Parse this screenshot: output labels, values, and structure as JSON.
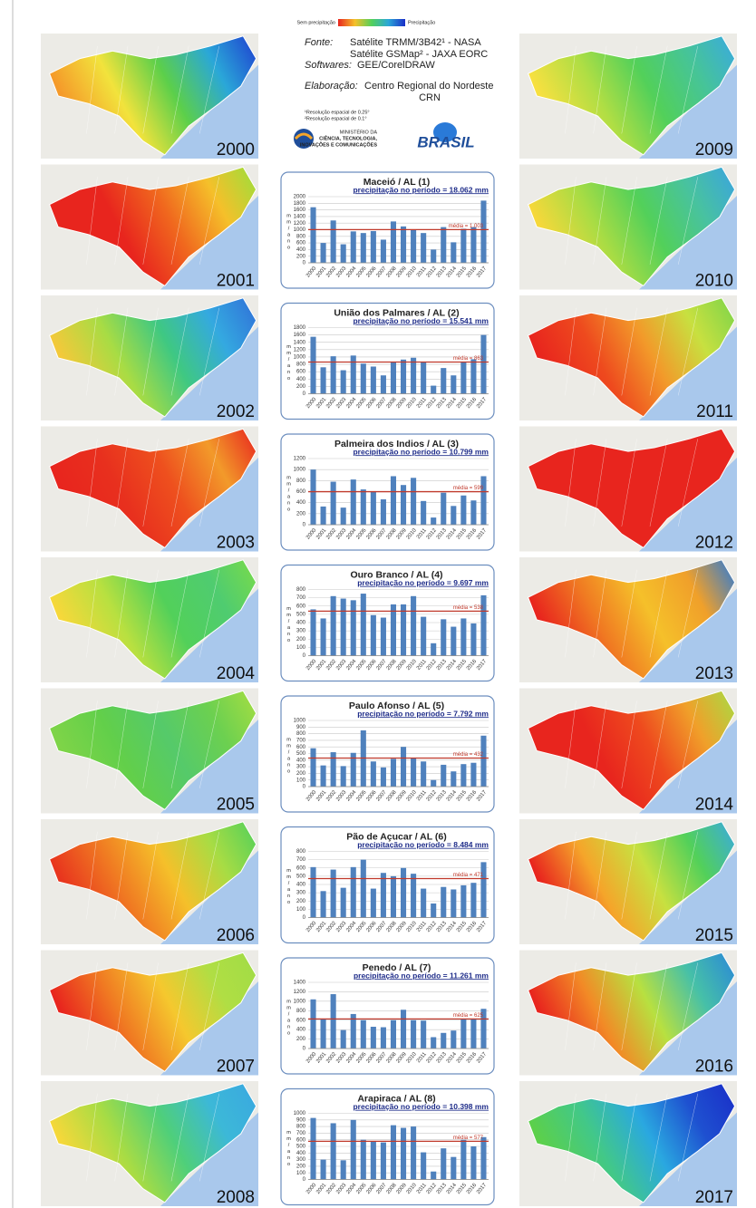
{
  "header": {
    "legend_low": "Sem precipitação",
    "legend_high": "Precipitação",
    "source_label": "Fonte:",
    "sources": [
      "Satélite TRMM/3B42¹ - NASA",
      "Satélite GSMap² - JAXA EORC"
    ],
    "software_label": "Softwares:",
    "software": "GEE/CorelDRAW",
    "credit_label": "Elaboração:",
    "credit": "Centro Regional do Nordeste",
    "credit_line2": "CRN",
    "notes": [
      "¹Resolução espacial de 0.25°",
      "²Resolução espacial de 0.1°"
    ],
    "ministry": [
      "MINISTÉRIO DA",
      "CIÊNCIA, TECNOLOGIA,",
      "INOVAÇÕES E COMUNICAÇÕES"
    ],
    "logo": "BRASIL"
  },
  "maps": [
    {
      "year": "2000",
      "colors": [
        "#f59a2a",
        "#f2e33c",
        "#5ccf4a",
        "#2aa7d8",
        "#1e3fd0"
      ]
    },
    {
      "year": "2001",
      "colors": [
        "#e8251e",
        "#e8251e",
        "#f0681e",
        "#f5c02a",
        "#9adf3c"
      ]
    },
    {
      "year": "2002",
      "colors": [
        "#f3c93a",
        "#a8dc44",
        "#3fc882",
        "#34a9e0",
        "#3070d8"
      ]
    },
    {
      "year": "2003",
      "colors": [
        "#e8251e",
        "#e8301e",
        "#ee501e",
        "#f29a2a",
        "#e8251e"
      ]
    },
    {
      "year": "2004",
      "colors": [
        "#f6d83a",
        "#b8e040",
        "#52d05a",
        "#4fcc70",
        "#7adb4a"
      ]
    },
    {
      "year": "2005",
      "colors": [
        "#7ed448",
        "#62cf4a",
        "#55ca6a",
        "#6cd050",
        "#a6de42"
      ]
    },
    {
      "year": "2006",
      "colors": [
        "#e8351e",
        "#f07a22",
        "#f5c02a",
        "#a8dc44",
        "#52d05a"
      ]
    },
    {
      "year": "2007",
      "colors": [
        "#e8251e",
        "#f07a22",
        "#f5c82e",
        "#b0de44",
        "#a0dc46"
      ]
    },
    {
      "year": "2008",
      "colors": [
        "#f5d83a",
        "#a8dc44",
        "#4fcf7a",
        "#3cb8d8",
        "#3aa8e0"
      ]
    },
    {
      "year": "2009",
      "colors": [
        "#f7e040",
        "#b0de44",
        "#52d05a",
        "#46c498",
        "#3aaae0"
      ]
    },
    {
      "year": "2010",
      "colors": [
        "#f6d83a",
        "#a8dc44",
        "#52d05a",
        "#48c2a0",
        "#3aa4e0"
      ]
    },
    {
      "year": "2011",
      "colors": [
        "#e8251e",
        "#ee4a1e",
        "#f29a2a",
        "#c8e040",
        "#7cd44a"
      ]
    },
    {
      "year": "2012",
      "colors": [
        "#e8251e",
        "#e8251e",
        "#e8251e",
        "#e8251e",
        "#e8251e"
      ]
    },
    {
      "year": "2013",
      "colors": [
        "#e8251e",
        "#f07a22",
        "#f5c02a",
        "#f0a02a",
        "#2a7ad8"
      ]
    },
    {
      "year": "2014",
      "colors": [
        "#e8251e",
        "#e8251e",
        "#ee4a1e",
        "#f0a02a",
        "#a8dc44"
      ]
    },
    {
      "year": "2015",
      "colors": [
        "#e8251e",
        "#f5a52a",
        "#c8e040",
        "#52d05a",
        "#3aaae0"
      ]
    },
    {
      "year": "2016",
      "colors": [
        "#e8251e",
        "#f28a26",
        "#b8e040",
        "#46c0a8",
        "#2a88d8"
      ]
    },
    {
      "year": "2017",
      "colors": [
        "#5cd04a",
        "#42c888",
        "#2aa8e0",
        "#1e50d0",
        "#1a2ec8"
      ]
    }
  ],
  "chart_data": [
    {
      "type": "bar",
      "title": "Maceió / AL (1)",
      "subtitle": "precipitação no período = 18.062 mm",
      "y_label": "mm/ano",
      "categories": [
        "2000",
        "2001",
        "2002",
        "2003",
        "2004",
        "2005",
        "2006",
        "2007",
        "2008",
        "2009",
        "2010",
        "2011",
        "2012",
        "2013",
        "2014",
        "2015",
        "2016",
        "2017"
      ],
      "values": [
        1680,
        600,
        1280,
        560,
        950,
        900,
        960,
        700,
        1250,
        1100,
        1000,
        900,
        400,
        1080,
        620,
        1030,
        1080,
        1880
      ],
      "color": "#4f81bd",
      "mean": 1003,
      "mean_label": "média = 1.003",
      "mean_color": "#c0392b",
      "ylim": [
        0,
        2000
      ],
      "yticks": [
        0,
        200,
        400,
        600,
        800,
        1000,
        1200,
        1400,
        1600,
        1800,
        2000
      ],
      "grid": true
    },
    {
      "type": "bar",
      "title": "União dos Palmares / AL (2)",
      "subtitle": "precipitação no período = 15.541 mm",
      "y_label": "mm/ano",
      "categories": [
        "2000",
        "2001",
        "2002",
        "2003",
        "2004",
        "2005",
        "2006",
        "2007",
        "2008",
        "2009",
        "2010",
        "2011",
        "2012",
        "2013",
        "2014",
        "2015",
        "2016",
        "2017"
      ],
      "values": [
        1550,
        720,
        1020,
        640,
        1040,
        820,
        740,
        500,
        860,
        930,
        980,
        860,
        220,
        700,
        500,
        860,
        940,
        1600
      ],
      "color": "#4f81bd",
      "mean": 863,
      "mean_label": "média = 863",
      "mean_color": "#c0392b",
      "ylim": [
        0,
        1800
      ],
      "yticks": [
        0,
        200,
        400,
        600,
        800,
        1000,
        1200,
        1400,
        1600,
        1800
      ],
      "grid": true
    },
    {
      "type": "bar",
      "title": "Palmeira dos Indios / AL (3)",
      "subtitle": "precipitação no período = 10.799 mm",
      "y_label": "mm/ano",
      "categories": [
        "2000",
        "2001",
        "2002",
        "2003",
        "2004",
        "2005",
        "2006",
        "2007",
        "2008",
        "2009",
        "2010",
        "2011",
        "2012",
        "2013",
        "2014",
        "2015",
        "2016",
        "2017"
      ],
      "values": [
        1000,
        330,
        780,
        310,
        820,
        640,
        600,
        460,
        880,
        720,
        850,
        430,
        130,
        580,
        340,
        530,
        440,
        880
      ],
      "color": "#4f81bd",
      "mean": 599,
      "mean_label": "média = 599",
      "mean_color": "#c0392b",
      "ylim": [
        0,
        1200
      ],
      "yticks": [
        0,
        200,
        400,
        600,
        800,
        1000,
        1200
      ],
      "grid": true
    },
    {
      "type": "bar",
      "title": "Ouro Branco / AL (4)",
      "subtitle": "precipitação no período = 9.697 mm",
      "y_label": "mm/ano",
      "categories": [
        "2000",
        "2001",
        "2002",
        "2003",
        "2004",
        "2005",
        "2006",
        "2007",
        "2008",
        "2009",
        "2010",
        "2011",
        "2012",
        "2013",
        "2014",
        "2015",
        "2016",
        "2017"
      ],
      "values": [
        560,
        450,
        720,
        690,
        670,
        750,
        490,
        460,
        620,
        620,
        720,
        470,
        150,
        440,
        350,
        450,
        390,
        730
      ],
      "color": "#4f81bd",
      "mean": 538,
      "mean_label": "média = 538",
      "mean_color": "#c0392b",
      "ylim": [
        0,
        800
      ],
      "yticks": [
        0,
        100,
        200,
        300,
        400,
        500,
        600,
        700,
        800
      ],
      "grid": true
    },
    {
      "type": "bar",
      "title": "Paulo Afonso / AL (5)",
      "subtitle": "precipitação no período = 7.792 mm",
      "y_label": "mm/ano",
      "categories": [
        "2000",
        "2001",
        "2002",
        "2003",
        "2004",
        "2005",
        "2006",
        "2007",
        "2008",
        "2009",
        "2010",
        "2011",
        "2012",
        "2013",
        "2014",
        "2015",
        "2016",
        "2017"
      ],
      "values": [
        580,
        320,
        520,
        310,
        510,
        850,
        380,
        290,
        420,
        600,
        430,
        380,
        100,
        330,
        230,
        340,
        360,
        770
      ],
      "color": "#4f81bd",
      "mean": 432,
      "mean_label": "média = 432",
      "mean_color": "#c0392b",
      "ylim": [
        0,
        1000
      ],
      "yticks": [
        0,
        100,
        200,
        300,
        400,
        500,
        600,
        700,
        800,
        900,
        1000
      ],
      "grid": true
    },
    {
      "type": "bar",
      "title": "Pão de Açucar / AL (6)",
      "subtitle": "precipitação no período = 8.484 mm",
      "y_label": "mm/ano",
      "categories": [
        "2000",
        "2001",
        "2002",
        "2003",
        "2004",
        "2005",
        "2006",
        "2007",
        "2008",
        "2009",
        "2010",
        "2011",
        "2012",
        "2013",
        "2014",
        "2015",
        "2016",
        "2017"
      ],
      "values": [
        610,
        320,
        580,
        360,
        610,
        700,
        350,
        540,
        500,
        600,
        530,
        350,
        170,
        370,
        340,
        390,
        420,
        670
      ],
      "color": "#4f81bd",
      "mean": 471,
      "mean_label": "média = 471",
      "mean_color": "#c0392b",
      "ylim": [
        0,
        800
      ],
      "yticks": [
        0,
        100,
        200,
        300,
        400,
        500,
        600,
        700,
        800
      ],
      "grid": true
    },
    {
      "type": "bar",
      "title": "Penedo / AL (7)",
      "subtitle": "precipitação no período = 11.261 mm",
      "y_label": "mm/ano",
      "categories": [
        "2000",
        "2001",
        "2002",
        "2003",
        "2004",
        "2005",
        "2006",
        "2007",
        "2008",
        "2009",
        "2010",
        "2011",
        "2012",
        "2013",
        "2014",
        "2015",
        "2016",
        "2017"
      ],
      "values": [
        1040,
        620,
        1150,
        390,
        730,
        600,
        460,
        450,
        600,
        820,
        600,
        590,
        240,
        330,
        380,
        620,
        620,
        840
      ],
      "color": "#4f81bd",
      "mean": 625,
      "mean_label": "média = 625",
      "mean_color": "#c0392b",
      "ylim": [
        0,
        1400
      ],
      "yticks": [
        0,
        200,
        400,
        600,
        800,
        1000,
        1200,
        1400
      ],
      "grid": true
    },
    {
      "type": "bar",
      "title": "Arapiraca / AL (8)",
      "subtitle": "precipitação no período = 10.398 mm",
      "y_label": "mm/ano",
      "categories": [
        "2000",
        "2001",
        "2002",
        "2003",
        "2004",
        "2005",
        "2006",
        "2007",
        "2008",
        "2009",
        "2010",
        "2011",
        "2012",
        "2013",
        "2014",
        "2015",
        "2016",
        "2017"
      ],
      "values": [
        930,
        300,
        850,
        290,
        900,
        600,
        570,
        560,
        820,
        780,
        800,
        410,
        120,
        470,
        340,
        600,
        500,
        640
      ],
      "color": "#4f81bd",
      "mean": 577,
      "mean_label": "média = 577",
      "mean_color": "#c0392b",
      "ylim": [
        0,
        1000
      ],
      "yticks": [
        0,
        100,
        200,
        300,
        400,
        500,
        600,
        700,
        800,
        900,
        1000
      ],
      "grid": true
    }
  ]
}
